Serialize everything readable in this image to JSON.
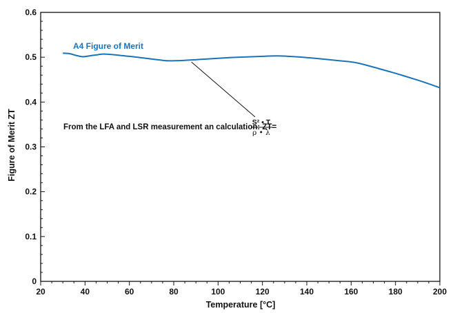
{
  "chart_data": {
    "type": "line",
    "xlabel": "Temperature [°C]",
    "ylabel": "Figure of Merit ZT",
    "xlim": [
      20,
      200
    ],
    "ylim": [
      0,
      0.6
    ],
    "x_ticks": [
      20,
      40,
      60,
      80,
      100,
      120,
      140,
      160,
      180,
      200
    ],
    "y_ticks": [
      0,
      0.1,
      0.2,
      0.3,
      0.4,
      0.5,
      0.6
    ],
    "y_tick_labels": [
      "0",
      "0.1",
      "0.2",
      "0.3",
      "0.4",
      "0.5",
      "0.6"
    ],
    "grid": false,
    "series": [
      {
        "name": "A4 Figure of Merit",
        "color": "#1a73b8",
        "x": [
          30,
          33,
          36,
          39,
          42,
          45,
          48,
          52,
          56,
          60,
          65,
          70,
          75,
          78,
          85,
          95,
          105,
          115,
          120,
          127,
          135,
          145,
          155,
          162,
          170,
          180,
          190,
          196,
          200
        ],
        "y": [
          0.509,
          0.508,
          0.504,
          0.501,
          0.503,
          0.505,
          0.507,
          0.506,
          0.504,
          0.502,
          0.499,
          0.496,
          0.493,
          0.492,
          0.493,
          0.496,
          0.499,
          0.501,
          0.502,
          0.503,
          0.501,
          0.497,
          0.492,
          0.488,
          0.478,
          0.464,
          0.449,
          0.439,
          0.432
        ]
      }
    ],
    "annotation": {
      "text": "From the LFA and LSR measurement an calculation: ZT=",
      "formula_numerator": "S² • T",
      "formula_denominator": "ρ • λ",
      "points_to": {
        "x": 88,
        "y": 0.494
      }
    }
  }
}
